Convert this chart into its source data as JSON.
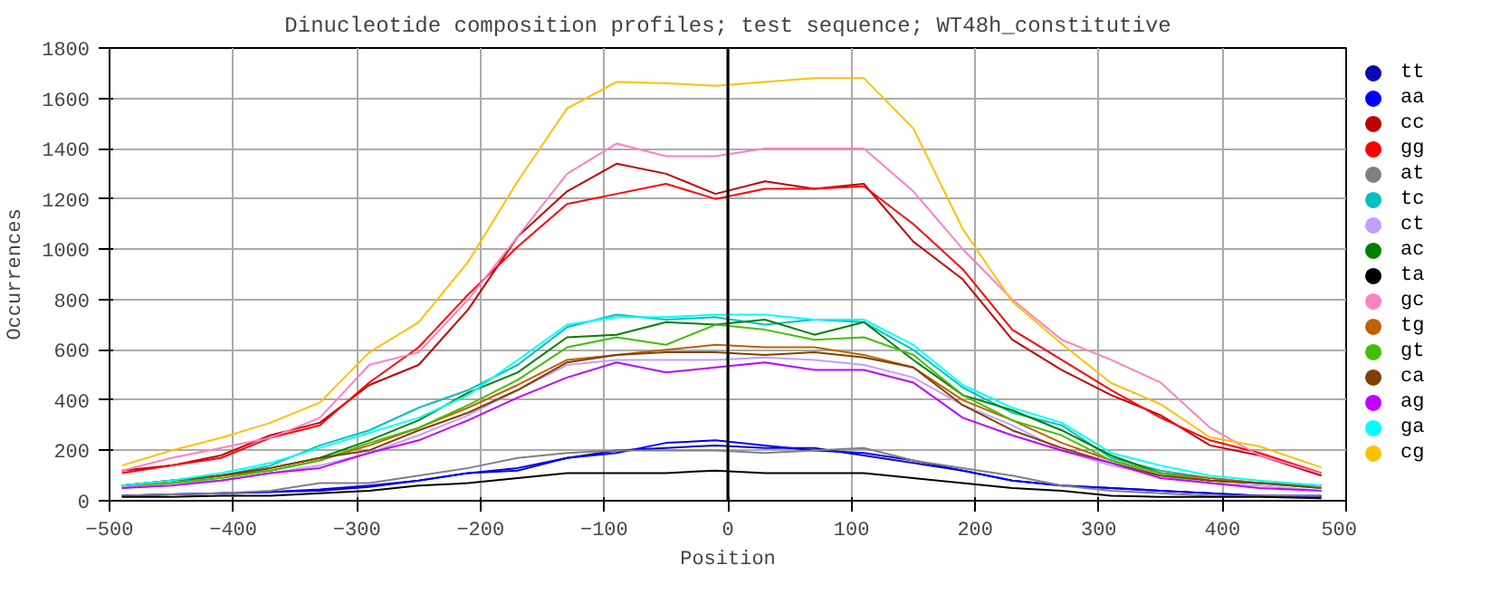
{
  "chart_data": {
    "type": "line",
    "title": "Dinucleotide composition profiles; test sequence; WT48h_constitutive",
    "xlabel": "Position",
    "ylabel": "Occurrences",
    "x": [
      -490,
      -450,
      -410,
      -370,
      -330,
      -290,
      -250,
      -210,
      -170,
      -130,
      -90,
      -50,
      -10,
      30,
      70,
      110,
      150,
      190,
      230,
      270,
      310,
      350,
      390,
      430,
      480
    ],
    "xlim": [
      -500,
      500
    ],
    "xticks": [
      -500,
      -400,
      -300,
      -200,
      -100,
      0,
      100,
      200,
      300,
      400,
      500
    ],
    "ylim": [
      0,
      1800
    ],
    "yticks": [
      0,
      200,
      400,
      600,
      800,
      1000,
      1200,
      1400,
      1600,
      1800
    ],
    "grid": true,
    "legend": "right",
    "marker": "none",
    "line_style": "solid",
    "ref_lines": [
      {
        "axis": "x",
        "value": 0,
        "color": "#000000"
      }
    ],
    "series": [
      {
        "name": "tt",
        "color": "#0a0ab4",
        "values": [
          20,
          25,
          30,
          35,
          40,
          55,
          80,
          110,
          120,
          170,
          200,
          210,
          220,
          210,
          210,
          180,
          150,
          120,
          80,
          60,
          50,
          40,
          30,
          20,
          15
        ]
      },
      {
        "name": "aa",
        "color": "#0000ff",
        "values": [
          20,
          25,
          30,
          35,
          45,
          60,
          80,
          110,
          130,
          170,
          190,
          230,
          240,
          220,
          200,
          190,
          160,
          120,
          80,
          60,
          50,
          40,
          30,
          20,
          20
        ]
      },
      {
        "name": "cc",
        "color": "#c00000",
        "values": [
          120,
          140,
          180,
          260,
          310,
          460,
          540,
          760,
          1050,
          1230,
          1340,
          1300,
          1220,
          1270,
          1240,
          1260,
          1030,
          880,
          640,
          520,
          420,
          340,
          220,
          180,
          100
        ]
      },
      {
        "name": "gg",
        "color": "#ff0000",
        "values": [
          110,
          140,
          170,
          250,
          300,
          470,
          610,
          820,
          1010,
          1180,
          1220,
          1260,
          1200,
          1240,
          1240,
          1250,
          1100,
          920,
          680,
          560,
          440,
          330,
          240,
          190,
          110
        ]
      },
      {
        "name": "at",
        "color": "#808080",
        "values": [
          20,
          25,
          30,
          40,
          70,
          70,
          100,
          130,
          170,
          190,
          200,
          200,
          200,
          190,
          200,
          210,
          160,
          130,
          100,
          60,
          40,
          30,
          20,
          20,
          20
        ]
      },
      {
        "name": "tc",
        "color": "#00c0c0",
        "values": [
          50,
          70,
          100,
          140,
          220,
          280,
          370,
          440,
          540,
          690,
          740,
          720,
          730,
          700,
          720,
          710,
          600,
          450,
          350,
          300,
          170,
          120,
          90,
          70,
          50
        ]
      },
      {
        "name": "ct",
        "color": "#c0a0ff",
        "values": [
          50,
          70,
          80,
          110,
          140,
          190,
          260,
          340,
          440,
          540,
          560,
          560,
          560,
          570,
          560,
          540,
          490,
          380,
          300,
          200,
          140,
          100,
          70,
          60,
          40
        ]
      },
      {
        "name": "ac",
        "color": "#008000",
        "values": [
          60,
          80,
          100,
          130,
          170,
          240,
          320,
          430,
          510,
          650,
          660,
          710,
          700,
          720,
          660,
          710,
          560,
          420,
          360,
          280,
          180,
          110,
          80,
          70,
          60
        ]
      },
      {
        "name": "ta",
        "color": "#000000",
        "values": [
          15,
          15,
          20,
          20,
          30,
          40,
          60,
          70,
          90,
          110,
          110,
          110,
          120,
          110,
          110,
          110,
          90,
          70,
          50,
          40,
          20,
          15,
          15,
          15,
          10
        ]
      },
      {
        "name": "gc",
        "color": "#ff80c0",
        "values": [
          120,
          170,
          210,
          250,
          330,
          540,
          590,
          800,
          1050,
          1300,
          1420,
          1370,
          1370,
          1400,
          1400,
          1400,
          1230,
          1000,
          800,
          640,
          560,
          470,
          290,
          180,
          108
        ]
      },
      {
        "name": "tg",
        "color": "#c06000",
        "values": [
          60,
          80,
          100,
          120,
          160,
          220,
          290,
          370,
          460,
          560,
          580,
          600,
          620,
          610,
          610,
          580,
          530,
          400,
          320,
          230,
          160,
          110,
          90,
          70,
          60
        ]
      },
      {
        "name": "gt",
        "color": "#40c000",
        "values": [
          60,
          70,
          90,
          120,
          160,
          230,
          290,
          380,
          480,
          610,
          650,
          620,
          700,
          680,
          640,
          650,
          580,
          420,
          320,
          260,
          160,
          110,
          80,
          70,
          60
        ]
      },
      {
        "name": "ca",
        "color": "#804000",
        "values": [
          60,
          80,
          100,
          130,
          170,
          200,
          280,
          350,
          440,
          550,
          580,
          590,
          590,
          580,
          590,
          570,
          530,
          380,
          280,
          210,
          150,
          100,
          80,
          70,
          50
        ]
      },
      {
        "name": "ag",
        "color": "#c000ff",
        "values": [
          50,
          60,
          80,
          110,
          130,
          190,
          240,
          320,
          410,
          490,
          550,
          510,
          530,
          550,
          520,
          520,
          470,
          330,
          260,
          200,
          150,
          90,
          70,
          50,
          40
        ]
      },
      {
        "name": "ga",
        "color": "#00ffff",
        "values": [
          60,
          80,
          110,
          150,
          210,
          270,
          330,
          420,
          560,
          700,
          730,
          730,
          740,
          740,
          720,
          720,
          620,
          460,
          370,
          310,
          190,
          140,
          100,
          80,
          60
        ]
      },
      {
        "name": "cg",
        "color": "#ffc000",
        "values": [
          140,
          200,
          250,
          310,
          390,
          590,
          710,
          950,
          1270,
          1560,
          1665,
          1660,
          1650,
          1665,
          1680,
          1680,
          1480,
          1080,
          792,
          624,
          468,
          384,
          252,
          216,
          132
        ]
      }
    ]
  }
}
